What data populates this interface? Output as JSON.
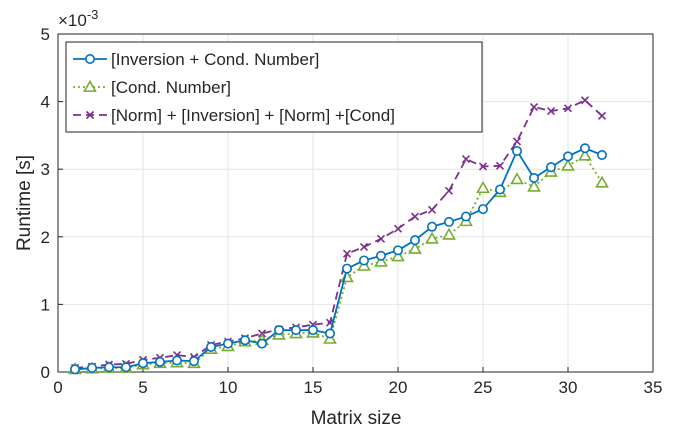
{
  "chart_data": {
    "type": "line",
    "title": "",
    "xlabel": "Matrix size",
    "ylabel": "Runtime [s]",
    "xlim": [
      0,
      35
    ],
    "ylim": [
      0,
      5
    ],
    "xticks": [
      0,
      5,
      10,
      15,
      20,
      25,
      30,
      35
    ],
    "yticks": [
      0,
      1,
      2,
      3,
      4,
      5
    ],
    "y_exponent_base": "×10",
    "y_exponent_power": "-3",
    "grid": true,
    "legend_position": "top-left",
    "x": [
      1,
      2,
      3,
      4,
      5,
      6,
      7,
      8,
      9,
      10,
      11,
      12,
      13,
      14,
      15,
      16,
      17,
      18,
      19,
      20,
      21,
      22,
      23,
      24,
      25,
      26,
      27,
      28,
      29,
      30,
      31,
      32
    ],
    "series": [
      {
        "name": "[Inversion + Cond. Number]",
        "color": "#0072BD",
        "line": "solid",
        "marker": "circle",
        "values": [
          0.04,
          0.06,
          0.07,
          0.07,
          0.13,
          0.15,
          0.17,
          0.16,
          0.37,
          0.42,
          0.47,
          0.42,
          0.62,
          0.62,
          0.62,
          0.57,
          1.53,
          1.65,
          1.72,
          1.8,
          1.95,
          2.15,
          2.22,
          2.3,
          2.41,
          2.7,
          3.27,
          2.87,
          3.03,
          3.19,
          3.31,
          3.21
        ]
      },
      {
        "name": "[Cond. Number]",
        "color": "#77AC30",
        "line": "dotted",
        "marker": "triangle",
        "values": [
          0.04,
          0.05,
          0.06,
          0.06,
          0.11,
          0.13,
          0.14,
          0.13,
          0.34,
          0.38,
          0.45,
          0.47,
          0.55,
          0.57,
          0.58,
          0.49,
          1.4,
          1.57,
          1.63,
          1.71,
          1.82,
          1.97,
          2.03,
          2.23,
          2.72,
          2.66,
          2.85,
          2.74,
          2.96,
          3.05,
          3.2,
          2.8
        ]
      },
      {
        "name": "[Norm] + [Inversion] + [Norm] +[Cond]",
        "color": "#7E2F8E",
        "line": "dashed",
        "marker": "x",
        "values": [
          0.06,
          0.08,
          0.11,
          0.12,
          0.18,
          0.21,
          0.25,
          0.22,
          0.4,
          0.45,
          0.5,
          0.57,
          0.63,
          0.66,
          0.7,
          0.73,
          1.75,
          1.85,
          1.97,
          2.12,
          2.3,
          2.4,
          2.68,
          3.15,
          3.04,
          3.05,
          3.41,
          3.92,
          3.86,
          3.9,
          4.02,
          3.79
        ]
      }
    ]
  }
}
